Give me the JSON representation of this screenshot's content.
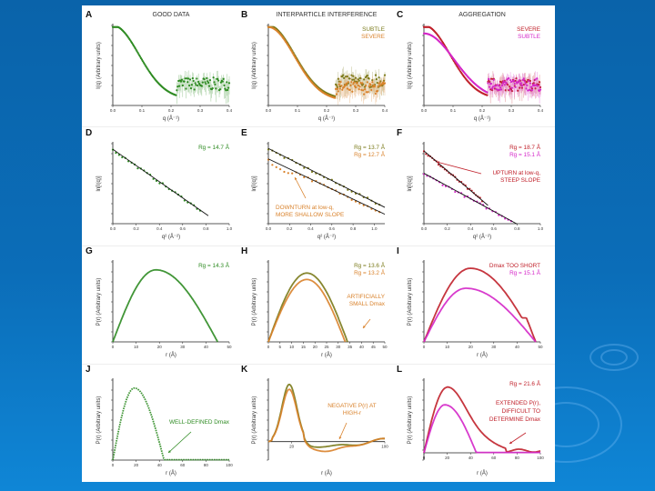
{
  "background": {
    "color_top": "#0a63aa",
    "color_bottom": "#0f86d6"
  },
  "colors": {
    "green": "#2e8b22",
    "olive": "#7a7a1a",
    "orange": "#d9822b",
    "darkred": "#c0202a",
    "magenta": "#d426c8",
    "black": "#111111"
  },
  "chart_data": [
    {
      "id": "A",
      "type": "scatter",
      "title": "GOOD DATA",
      "xlabel": "q (Å⁻¹)",
      "ylabel": "I(q) (Arbitrary units)",
      "xlim": [
        0,
        0.4
      ],
      "ylim": [
        0,
        1
      ],
      "yscale": "log",
      "xticks": [
        "0.0",
        "0.1",
        "0.2",
        "0.3",
        "0.4"
      ],
      "series": [
        {
          "name": "good",
          "color": "green",
          "kind": "scattering",
          "q0": 0,
          "fall": 1.0,
          "noise_start": 0.22,
          "level": 0.27,
          "offset": 0
        }
      ],
      "annotations": []
    },
    {
      "id": "B",
      "type": "scatter",
      "title": "INTERPARTICLE INTERFERENCE",
      "xlabel": "q (Å⁻¹)",
      "ylabel": "I(q) (Arbitrary units)",
      "xlim": [
        0,
        0.4
      ],
      "ylim": [
        0,
        1
      ],
      "yscale": "log",
      "xticks": [
        "0.0",
        "0.1",
        "0.2",
        "0.3",
        "0.4"
      ],
      "series": [
        {
          "name": "SUBTLE",
          "color": "olive",
          "kind": "scattering",
          "q0": 0,
          "fall": 1.0,
          "noise_start": 0.23,
          "level": 0.3,
          "offset": 0
        },
        {
          "name": "SEVERE",
          "color": "orange",
          "kind": "scattering",
          "q0": 0,
          "fall": 1.0,
          "noise_start": 0.23,
          "level": 0.22,
          "offset": 0.02
        }
      ],
      "annotations": [
        {
          "text": "SUBTLE",
          "color": "olive",
          "pos": "top-right",
          "line": 0
        },
        {
          "text": "SEVERE",
          "color": "orange",
          "pos": "top-right",
          "line": 1
        }
      ]
    },
    {
      "id": "C",
      "type": "scatter",
      "title": "AGGREGATION",
      "xlabel": "q (Å⁻¹)",
      "ylabel": "I(q) (Arbitrary units)",
      "xlim": [
        0,
        0.4
      ],
      "ylim": [
        0,
        1
      ],
      "yscale": "log",
      "xticks": [
        "0.0",
        "0.1",
        "0.2",
        "0.3",
        "0.4"
      ],
      "series": [
        {
          "name": "SEVERE",
          "color": "darkred",
          "kind": "scattering",
          "q0": 0,
          "fall": 1.0,
          "noise_start": 0.22,
          "level": 0.26,
          "offset": 0
        },
        {
          "name": "SUBTLE",
          "color": "magenta",
          "kind": "scattering",
          "q0": 0,
          "fall": 0.88,
          "noise_start": 0.22,
          "level": 0.26,
          "offset": 0.06
        }
      ],
      "annotations": [
        {
          "text": "SEVERE",
          "color": "darkred",
          "pos": "top-right",
          "line": 0
        },
        {
          "text": "SUBTLE",
          "color": "magenta",
          "pos": "top-right",
          "line": 1
        }
      ]
    },
    {
      "id": "D",
      "type": "line",
      "title": "",
      "xlabel": "q² (Å⁻²)",
      "ylabel": "ln[I(q)]",
      "xlim": [
        0,
        1.0
      ],
      "ylim": [
        0,
        1
      ],
      "xticks": [
        "0.0",
        "0.2",
        "0.4",
        "0.6",
        "0.8",
        "1.0"
      ],
      "series": [
        {
          "name": "Guinier",
          "color": "green",
          "kind": "guinier",
          "y0": 0.92,
          "slope": -1.0,
          "xmax": 0.75,
          "fit_to": 0.82
        }
      ],
      "annotations": [
        {
          "text": "Rg = 14.7 Å",
          "color": "green",
          "pos": "top-right",
          "line": 0
        }
      ]
    },
    {
      "id": "E",
      "type": "line",
      "title": "",
      "xlabel": "q² (Å⁻²)",
      "ylabel": "ln[I(q)]",
      "xlim": [
        0,
        1.1
      ],
      "ylim": [
        0,
        1
      ],
      "xticks": [
        "0.0",
        "0.2",
        "0.4",
        "0.6",
        "0.8",
        "1.0"
      ],
      "series": [
        {
          "name": "subtle",
          "color": "olive",
          "kind": "guinier",
          "y0": 0.93,
          "slope": -0.66,
          "xmax": 1.05,
          "fit_to": 1.1,
          "downturn": false
        },
        {
          "name": "severe",
          "color": "orange",
          "kind": "guinier",
          "y0": 0.8,
          "slope": -0.62,
          "xmax": 1.05,
          "fit_to": 1.1,
          "downturn": true
        }
      ],
      "annotations": [
        {
          "text": "Rg = 13.7 Å",
          "color": "olive",
          "pos": "top-right",
          "line": 0
        },
        {
          "text": "Rg = 12.7 Å",
          "color": "orange",
          "pos": "top-right",
          "line": 1
        },
        {
          "text": "DOWNTURN at low-q,",
          "color": "orange",
          "pos": "bottom-left",
          "line": 0
        },
        {
          "text": "MORE SHALLOW SLOPE",
          "color": "orange",
          "pos": "bottom-left",
          "line": 1
        }
      ]
    },
    {
      "id": "F",
      "type": "line",
      "title": "",
      "xlabel": "q² (Å⁻²)",
      "ylabel": "ln[I(q)]",
      "xlim": [
        0,
        1.0
      ],
      "ylim": [
        0,
        1
      ],
      "xticks": [
        "0.0",
        "0.2",
        "0.4",
        "0.6",
        "0.8",
        "1.0"
      ],
      "series": [
        {
          "name": "severe",
          "color": "darkred",
          "kind": "guinier",
          "y0": 0.9,
          "slope": -1.22,
          "xmax": 0.5,
          "fit_to": 0.55
        },
        {
          "name": "subtle",
          "color": "magenta",
          "kind": "guinier",
          "y0": 0.62,
          "slope": -0.78,
          "xmax": 0.75,
          "fit_to": 0.8
        }
      ],
      "annotations": [
        {
          "text": "Rg = 18.7 Å",
          "color": "darkred",
          "pos": "top-right",
          "line": 0
        },
        {
          "text": "Rg = 15.1 Å",
          "color": "magenta",
          "pos": "top-right",
          "line": 1
        },
        {
          "text": "UPTURN at low-q,",
          "color": "darkred",
          "pos": "mid-right",
          "line": 0
        },
        {
          "text": "STEEP SLOPE",
          "color": "darkred",
          "pos": "mid-right",
          "line": 1
        }
      ]
    },
    {
      "id": "G",
      "type": "line",
      "title": "",
      "xlabel": "r (Å)",
      "ylabel": "P(r) (Arbitrary units)",
      "xlim": [
        0,
        50
      ],
      "ylim": [
        0,
        1
      ],
      "xticks": [
        "0",
        "10",
        "20",
        "30",
        "40",
        "50"
      ],
      "series": [
        {
          "name": "good",
          "color": "green",
          "kind": "pr",
          "peak": 18.5,
          "dmax": 45,
          "height": 0.9,
          "shoulder": 0,
          "tail": 0.08
        }
      ],
      "annotations": [
        {
          "text": "Rg = 14.3 Å",
          "color": "green",
          "pos": "top-right",
          "line": 0
        }
      ]
    },
    {
      "id": "H",
      "type": "line",
      "title": "",
      "xlabel": "r (Å)",
      "ylabel": "P(r) (Arbitrary units)",
      "xlim": [
        0,
        50
      ],
      "ylim": [
        0,
        1
      ],
      "xticks": [
        "0",
        "5",
        "10",
        "15",
        "20",
        "25",
        "30",
        "35",
        "40",
        "45",
        "50"
      ],
      "series": [
        {
          "name": "subtle",
          "color": "olive",
          "kind": "pr",
          "peak": 16.5,
          "dmax": 34,
          "height": 0.86,
          "shoulder": 0,
          "tail": 0
        },
        {
          "name": "severe",
          "color": "orange",
          "kind": "pr",
          "peak": 16.5,
          "dmax": 33,
          "height": 0.78,
          "shoulder": 0,
          "tail": 0
        }
      ],
      "annotations": [
        {
          "text": "Rg = 13.6 Å",
          "color": "olive",
          "pos": "top-right",
          "line": 0
        },
        {
          "text": "Rg = 13.2 Å",
          "color": "orange",
          "pos": "top-right",
          "line": 1
        },
        {
          "text": "ARTIFICIALLY",
          "color": "orange",
          "pos": "mid-right",
          "line": 0
        },
        {
          "text": "SMALL Dmax",
          "color": "orange",
          "pos": "mid-right",
          "line": 1
        }
      ]
    },
    {
      "id": "I",
      "type": "line",
      "title": "",
      "xlabel": "r (Å)",
      "ylabel": "P(r) (Arbitrary units)",
      "xlim": [
        0,
        50
      ],
      "ylim": [
        0,
        1
      ],
      "xticks": [
        "0",
        "10",
        "20",
        "30",
        "40",
        "50"
      ],
      "series": [
        {
          "name": "severe",
          "color": "darkred",
          "kind": "pr",
          "peak": 20,
          "dmax": 48,
          "height": 0.92,
          "shoulder": 0.3,
          "tail": 0
        },
        {
          "name": "subtle",
          "color": "magenta",
          "kind": "pr",
          "peak": 18,
          "dmax": 48,
          "height": 0.67,
          "shoulder": 0,
          "tail": 0.06
        }
      ],
      "annotations": [
        {
          "text": "Dmax TOO SHORT",
          "color": "darkred",
          "pos": "top-right",
          "line": 0
        },
        {
          "text": "Rg = 15.1 Å",
          "color": "magenta",
          "pos": "top-right",
          "line": 1
        }
      ]
    },
    {
      "id": "J",
      "type": "line",
      "title": "",
      "xlabel": "r (Å)",
      "ylabel": "P(r) (Arbitrary units)",
      "xlim": [
        0,
        100
      ],
      "ylim": [
        0,
        1
      ],
      "xticks": [
        "0",
        "20",
        "40",
        "60",
        "80",
        "100"
      ],
      "series": [
        {
          "name": "good",
          "color": "green",
          "kind": "pr",
          "peak": 18.5,
          "dmax": 44,
          "height": 0.9,
          "shoulder": 0,
          "tail": 0.02,
          "flat_to": 100
        }
      ],
      "annotations": [
        {
          "text": "WELL-DEFINED Dmax",
          "color": "green",
          "pos": "mid-right",
          "line": 0
        }
      ]
    },
    {
      "id": "K",
      "type": "line",
      "title": "",
      "xlabel": "r (Å)",
      "ylabel": "P(r) (Arbitrary units)",
      "xlim": [
        0,
        100
      ],
      "ylim": [
        -0.3,
        1
      ],
      "xticks": [
        "20",
        "100"
      ],
      "series": [
        {
          "name": "subtle",
          "color": "olive",
          "kind": "oscillating",
          "peak": 18,
          "height": 0.93,
          "neg": -0.12
        },
        {
          "name": "severe",
          "color": "orange",
          "kind": "oscillating",
          "peak": 18,
          "height": 0.85,
          "neg": -0.2
        }
      ],
      "annotations": [
        {
          "text": "NEGATIVE P(r) AT",
          "color": "orange",
          "pos": "mid-right",
          "line": 0
        },
        {
          "text": "HIGH-r",
          "color": "orange",
          "pos": "mid-right",
          "line": 1
        }
      ]
    },
    {
      "id": "L",
      "type": "line",
      "title": "",
      "xlabel": "r (Å)",
      "ylabel": "P(r) (Arbitrary units)",
      "xlim": [
        0,
        100
      ],
      "ylim": [
        -0.1,
        1
      ],
      "xticks": [
        "0",
        "20",
        "40",
        "60",
        "80",
        "100"
      ],
      "series": [
        {
          "name": "severe",
          "color": "darkred",
          "kind": "pr_long",
          "peak": 20,
          "dmax": 100,
          "height": 0.9
        },
        {
          "name": "subtle",
          "color": "magenta",
          "kind": "pr",
          "peak": 18,
          "dmax": 45,
          "height": 0.66,
          "shoulder": 0,
          "tail": 0.03,
          "flat_to": 100
        }
      ],
      "annotations": [
        {
          "text": "Rg = 21.6 Å",
          "color": "darkred",
          "pos": "top-right",
          "line": 0
        },
        {
          "text": "EXTENDED P(r),",
          "color": "darkred",
          "pos": "mid-right",
          "line": 0
        },
        {
          "text": "DIFFICULT TO",
          "color": "darkred",
          "pos": "mid-right",
          "line": 1
        },
        {
          "text": "DETERMINE Dmax",
          "color": "darkred",
          "pos": "mid-right",
          "line": 2
        }
      ]
    }
  ]
}
